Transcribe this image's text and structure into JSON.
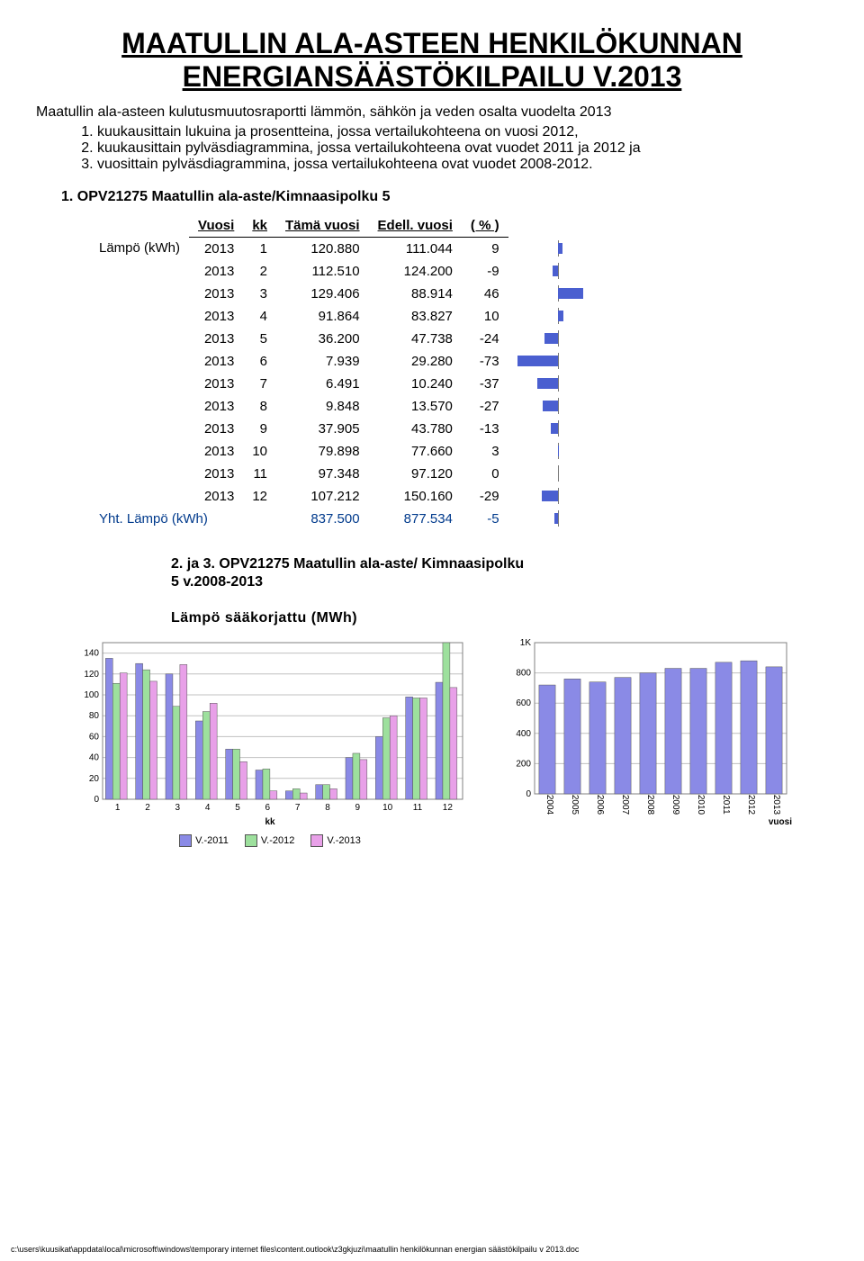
{
  "title_line1": "MAATULLIN ALA-ASTEEN HENKILÖKUNNAN",
  "title_line2": "ENERGIANSÄÄSTÖKILPAILU V.2013",
  "intro": "Maatullin ala-asteen kulutusmuutosraportti lämmön, sähkön ja veden osalta vuodelta 2013",
  "list": [
    "kuukausittain lukuina ja prosentteina, jossa vertailukohteena on vuosi 2012,",
    "kuukausittain pylväsdiagrammina, jossa vertailukohteena ovat vuodet 2011 ja 2012 ja",
    "vuosittain pylväsdiagrammina, jossa vertailukohteena ovat vuodet 2008-2012."
  ],
  "section1_heading": "1.   OPV21275 Maatullin ala-aste/Kimnaasipolku 5",
  "table": {
    "row_label": "Lämpö (kWh)",
    "columns": [
      "Vuosi",
      "kk",
      "Tämä vuosi",
      "Edell. vuosi",
      "( % )"
    ],
    "rows": [
      [
        "2013",
        "1",
        "120.880",
        "111.044",
        9
      ],
      [
        "2013",
        "2",
        "112.510",
        "124.200",
        -9
      ],
      [
        "2013",
        "3",
        "129.406",
        "88.914",
        46
      ],
      [
        "2013",
        "4",
        "91.864",
        "83.827",
        10
      ],
      [
        "2013",
        "5",
        "36.200",
        "47.738",
        -24
      ],
      [
        "2013",
        "6",
        "7.939",
        "29.280",
        -73
      ],
      [
        "2013",
        "7",
        "6.491",
        "10.240",
        -37
      ],
      [
        "2013",
        "8",
        "9.848",
        "13.570",
        -27
      ],
      [
        "2013",
        "9",
        "37.905",
        "43.780",
        -13
      ],
      [
        "2013",
        "10",
        "79.898",
        "77.660",
        3
      ],
      [
        "2013",
        "11",
        "97.348",
        "97.120",
        0
      ],
      [
        "2013",
        "12",
        "107.212",
        "150.160",
        -29
      ]
    ],
    "total": {
      "label": "Yht. Lämpö (kWh)",
      "tama": "837.500",
      "edell": "877.534",
      "pct": -5
    }
  },
  "section2_heading": "2. ja 3. OPV21275 Maatullin ala-aste/ Kimnaasipolku 5 v.2008-2013",
  "chart_caption": "Lämpö sääkorjattu (MWh)",
  "chart_left": {
    "type": "bar",
    "ymax": 150,
    "ytick": 20,
    "x_labels": [
      "1",
      "2",
      "3",
      "4",
      "5",
      "6",
      "7",
      "8",
      "9",
      "10",
      "11",
      "12"
    ],
    "x_axis_label": "kk",
    "series": [
      {
        "name": "V.-2011",
        "color": "#8a8ae6",
        "values": [
          135,
          130,
          120,
          75,
          48,
          28,
          8,
          14,
          40,
          60,
          98,
          112
        ]
      },
      {
        "name": "V.-2012",
        "color": "#9de09d",
        "values": [
          111,
          124,
          89,
          84,
          48,
          29,
          10,
          14,
          44,
          78,
          97,
          150
        ]
      },
      {
        "name": "V.-2013",
        "color": "#e8a0e8",
        "values": [
          121,
          113,
          129,
          92,
          36,
          8,
          6,
          10,
          38,
          80,
          97,
          107
        ]
      }
    ],
    "legend": [
      "V.-2011",
      "V.-2012",
      "V.-2013"
    ],
    "legend_colors": [
      "#8a8ae6",
      "#9de09d",
      "#e8a0e8"
    ]
  },
  "chart_right": {
    "type": "bar",
    "ymax": 1000,
    "ytick": 200,
    "ylabel_prefix": "1K",
    "x_labels": [
      "2004",
      "2005",
      "2006",
      "2007",
      "2008",
      "2009",
      "2010",
      "2011",
      "2012",
      "2013"
    ],
    "x_axis_label": "vuosi",
    "color": "#8a8ae6",
    "values": [
      720,
      760,
      740,
      770,
      800,
      830,
      830,
      870,
      880,
      840
    ]
  },
  "footer": "c:\\users\\kuusikat\\appdata\\local\\microsoft\\windows\\temporary internet files\\content.outlook\\z3gkjuzi\\maatullin henkilökunnan energian säästökilpailu v 2013.doc"
}
